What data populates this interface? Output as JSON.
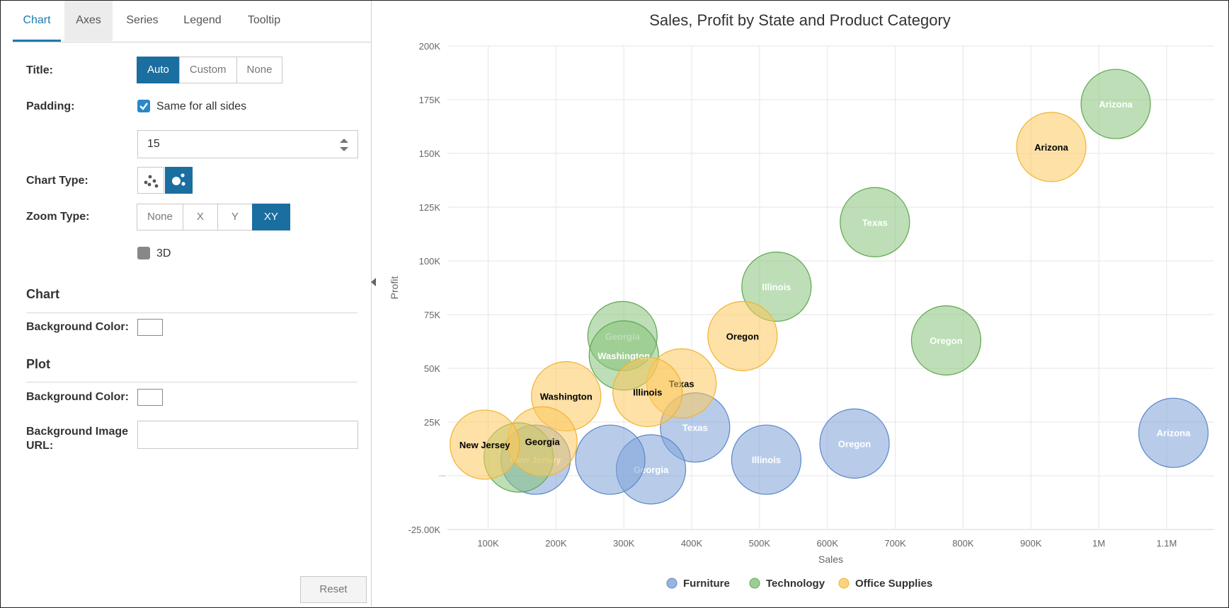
{
  "tabs": [
    "Chart",
    "Axes",
    "Series",
    "Legend",
    "Tooltip"
  ],
  "form": {
    "title_label": "Title:",
    "title_options": [
      "Auto",
      "Custom",
      "None"
    ],
    "padding_label": "Padding:",
    "same_sides_label": "Same for all sides",
    "padding_value": "15",
    "chart_type_label": "Chart Type:",
    "zoom_type_label": "Zoom Type:",
    "zoom_options": [
      "None",
      "X",
      "Y",
      "XY"
    ],
    "threed_label": "3D",
    "chart_section": "Chart",
    "chart_bg_label": "Background Color:",
    "plot_section": "Plot",
    "plot_bg_label": "Background Color:",
    "bg_image_label_1": "Background Image",
    "bg_image_label_2": "URL:",
    "reset_label": "Reset"
  },
  "colors": {
    "accent": "#1a6ea0",
    "furniture": "#7ea2d8",
    "technology": "#86c27a",
    "office": "#fcc85c"
  },
  "chart_data": {
    "type": "bubble",
    "title": "Sales, Profit by State and Product Category",
    "xlabel": "Sales",
    "ylabel": "Profit",
    "xticks": [
      "100K",
      "200K",
      "300K",
      "400K",
      "500K",
      "600K",
      "700K",
      "800K",
      "900K",
      "1M",
      "1.1M"
    ],
    "yticks": [
      "-25.00K",
      "",
      "25K",
      "50K",
      "75K",
      "100K",
      "125K",
      "150K",
      "175K",
      "200K"
    ],
    "xlim": [
      40000,
      1170000
    ],
    "ylim": [
      -25000,
      200000
    ],
    "legend": [
      "Furniture",
      "Technology",
      "Office Supplies"
    ],
    "series": [
      {
        "name": "Furniture",
        "points": [
          {
            "label": "Arizona",
            "x": 1110000,
            "y": 20000
          },
          {
            "label": "Oregon",
            "x": 640000,
            "y": 15000
          },
          {
            "label": "Illinois",
            "x": 510000,
            "y": 7500
          },
          {
            "label": "Texas",
            "x": 405000,
            "y": 22500
          },
          {
            "label": "Georgia",
            "x": 340000,
            "y": 3000
          },
          {
            "label": "",
            "x": 280000,
            "y": 7500
          },
          {
            "label": "New Jersey",
            "x": 170000,
            "y": 7500
          }
        ]
      },
      {
        "name": "Technology",
        "points": [
          {
            "label": "Arizona",
            "x": 1025000,
            "y": 173000
          },
          {
            "label": "Texas",
            "x": 670000,
            "y": 118000
          },
          {
            "label": "Illinois",
            "x": 525000,
            "y": 88000
          },
          {
            "label": "Oregon",
            "x": 775000,
            "y": 63000
          },
          {
            "label": "Georgia",
            "x": 298000,
            "y": 65000
          },
          {
            "label": "Washington",
            "x": 300000,
            "y": 56000
          },
          {
            "label": "",
            "x": 145000,
            "y": 8500
          }
        ]
      },
      {
        "name": "Office Supplies",
        "points": [
          {
            "label": "Arizona",
            "x": 930000,
            "y": 153000
          },
          {
            "label": "Oregon",
            "x": 475000,
            "y": 65000
          },
          {
            "label": "Texas",
            "x": 385000,
            "y": 43000
          },
          {
            "label": "Illinois",
            "x": 335000,
            "y": 39000
          },
          {
            "label": "Washington",
            "x": 215000,
            "y": 37000
          },
          {
            "label": "Georgia",
            "x": 180000,
            "y": 16000
          },
          {
            "label": "New Jersey",
            "x": 95000,
            "y": 14500
          }
        ]
      }
    ]
  }
}
